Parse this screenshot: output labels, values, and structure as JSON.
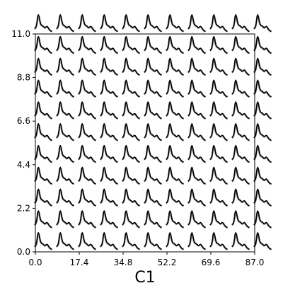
{
  "chart_data": {
    "type": "line",
    "title": "",
    "xlabel": "C1",
    "ylabel": "",
    "xlim": [
      0.0,
      87.0
    ],
    "ylim": [
      0.0,
      11.0
    ],
    "x_ticks": [
      "0.0",
      "17.4",
      "34.8",
      "52.2",
      "69.6",
      "87.0"
    ],
    "y_ticks": [
      "0.0",
      "2.2",
      "4.4",
      "6.6",
      "8.8",
      "11.0"
    ],
    "grid": false,
    "legend": "none",
    "colors": {
      "trace": "#000000",
      "band": "#777777",
      "axes": "#000000"
    },
    "glyph_grid": {
      "columns": 10,
      "rows": 10
    },
    "glyph_series": {
      "name": "",
      "values": [
        0.22,
        0.25,
        0.3,
        0.4,
        0.62,
        0.92,
        1.0,
        0.92,
        0.72,
        0.55,
        0.46,
        0.42,
        0.4,
        0.37,
        0.34,
        0.3,
        0.28,
        0.3,
        0.33,
        0.35,
        0.33,
        0.28,
        0.22,
        0.17,
        0.13,
        0.1,
        0.08,
        0.07
      ]
    }
  }
}
